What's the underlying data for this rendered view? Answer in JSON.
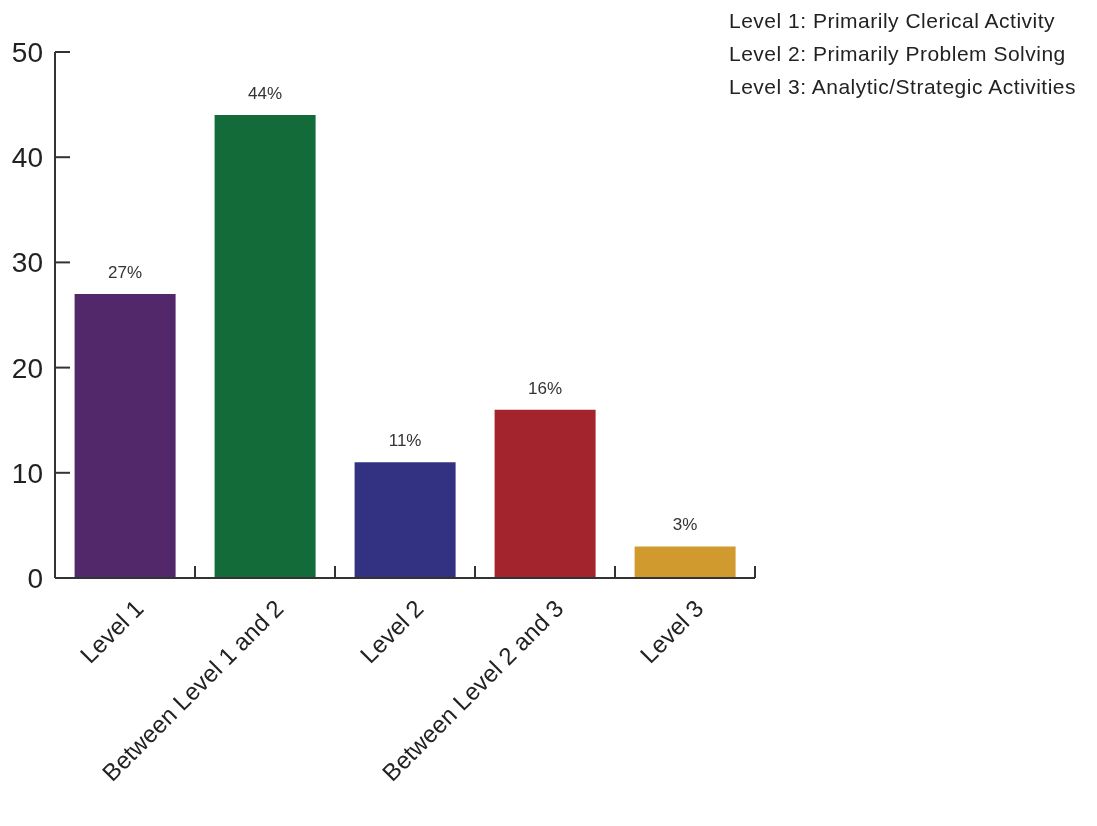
{
  "chart_data": {
    "type": "bar",
    "categories": [
      "Level 1",
      "Between Level 1 and 2",
      "Level 2",
      "Between Level 2 and 3",
      "Level 3"
    ],
    "values": [
      27,
      44,
      11,
      16,
      3
    ],
    "colors": [
      "#52286a",
      "#136b3a",
      "#333182",
      "#a3242d",
      "#d09a2e"
    ],
    "value_labels": [
      "27%",
      "44%",
      "11%",
      "16%",
      "3%"
    ],
    "ylim": [
      0,
      50
    ],
    "yticks": [
      0,
      10,
      20,
      30,
      40,
      50
    ],
    "annotations": [
      "Level 1: Primarily Clerical Activity",
      "Level 2: Primarily Problem Solving",
      "Level 3: Analytic/Strategic Activities"
    ]
  }
}
